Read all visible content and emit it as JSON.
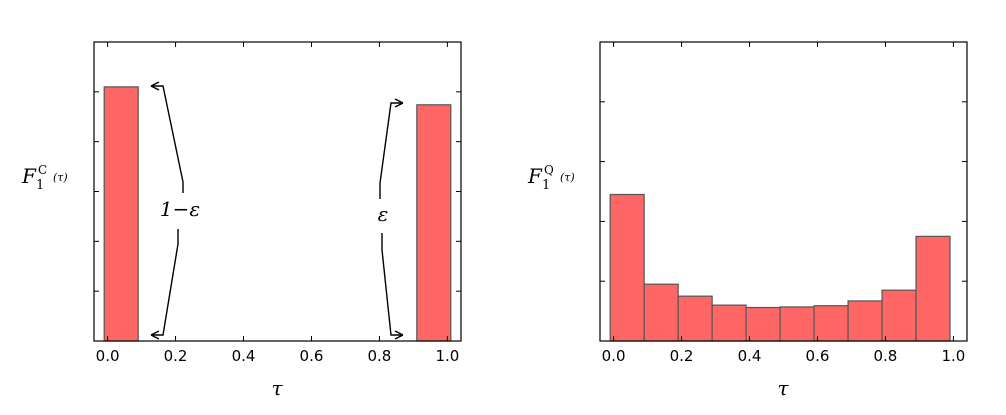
{
  "chart_data": [
    {
      "type": "bar",
      "xlim": [
        -0.04,
        1.04
      ],
      "ylim": [
        0,
        1.0
      ],
      "bin_edges": [
        -0.0,
        0.1,
        0.9,
        1.0
      ],
      "bars": [
        {
          "x0": -0.01,
          "x1": 0.09,
          "value": 0.85
        },
        {
          "x0": 0.91,
          "x1": 1.01,
          "value": 0.79
        }
      ],
      "x_ticks": [
        "0.0",
        "0.2",
        "0.4",
        "0.6",
        "0.8",
        "1.0"
      ],
      "y_tick_count": 6,
      "xlabel": "τ",
      "ylabel": {
        "base": "F",
        "sub": "1",
        "sup": "C",
        "arg": "(τ)"
      },
      "annotations": [
        {
          "text": "1−ε"
        },
        {
          "text": "ε"
        }
      ]
    },
    {
      "type": "bar",
      "xlim": [
        -0.04,
        1.04
      ],
      "ylim": [
        0,
        0.5
      ],
      "bars": [
        {
          "x0": -0.01,
          "x1": 0.09,
          "value": 0.245
        },
        {
          "x0": 0.09,
          "x1": 0.19,
          "value": 0.095
        },
        {
          "x0": 0.19,
          "x1": 0.29,
          "value": 0.075
        },
        {
          "x0": 0.29,
          "x1": 0.39,
          "value": 0.06
        },
        {
          "x0": 0.39,
          "x1": 0.49,
          "value": 0.056
        },
        {
          "x0": 0.49,
          "x1": 0.59,
          "value": 0.057
        },
        {
          "x0": 0.59,
          "x1": 0.69,
          "value": 0.059
        },
        {
          "x0": 0.69,
          "x1": 0.79,
          "value": 0.067
        },
        {
          "x0": 0.79,
          "x1": 0.89,
          "value": 0.085
        },
        {
          "x0": 0.89,
          "x1": 0.99,
          "value": 0.175
        }
      ],
      "x_ticks": [
        "0.0",
        "0.2",
        "0.4",
        "0.6",
        "0.8",
        "1.0"
      ],
      "y_tick_count": 5,
      "xlabel": "τ",
      "ylabel": {
        "base": "F",
        "sub": "1",
        "sup": "Q",
        "arg": "(τ)"
      }
    }
  ],
  "colors": {
    "bar_fill": "#ff6666",
    "bar_edge": "#555555"
  }
}
